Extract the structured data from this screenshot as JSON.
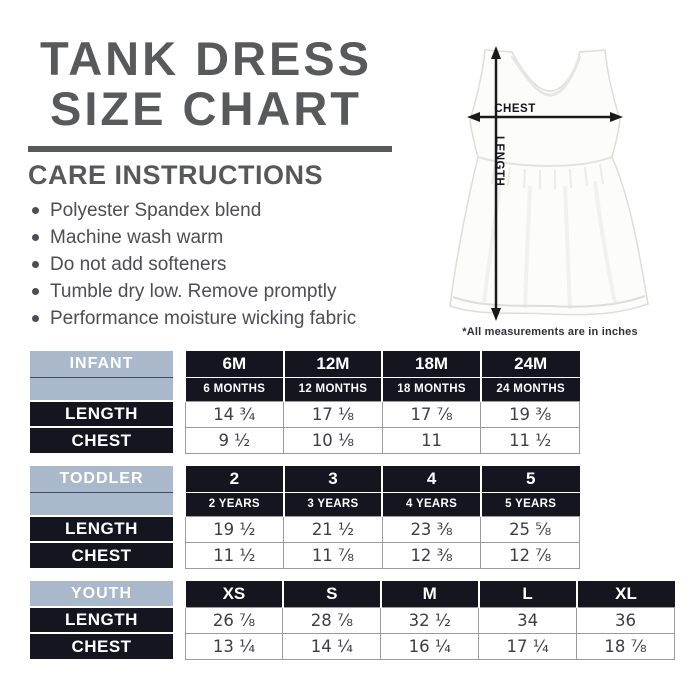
{
  "title": {
    "line1": "TANK DRESS",
    "line2": "SIZE CHART"
  },
  "care": {
    "heading": "CARE INSTRUCTIONS",
    "items": [
      "Polyester Spandex blend",
      "Machine wash warm",
      "Do not add softeners",
      "Tumble dry low. Remove promptly",
      "Performance moisture wicking fabric"
    ]
  },
  "diagram": {
    "chest_label": "CHEST",
    "length_label": "LENGTH",
    "note": "*All measurements are in inches"
  },
  "colors": {
    "navy": "#14151f",
    "light_blue": "#a9b8cb",
    "heading_gray": "#58595b",
    "body_text_gray": "#4d4d55",
    "value_text": "#3d3e43",
    "cell_border": "#9b9b9b",
    "arrow_black": "#1a1a1a"
  },
  "tables": [
    {
      "name": "INFANT",
      "columns": [
        {
          "code": "6M",
          "sub": "6 MONTHS"
        },
        {
          "code": "12M",
          "sub": "12 MONTHS"
        },
        {
          "code": "18M",
          "sub": "18 MONTHS"
        },
        {
          "code": "24M",
          "sub": "24 MONTHS"
        }
      ],
      "rows": [
        {
          "label": "LENGTH",
          "values": [
            "14 ¾",
            "17 ⅛",
            "17 ⅞",
            "19 ⅜"
          ]
        },
        {
          "label": "CHEST",
          "values": [
            "9 ½",
            "10 ⅛",
            "11",
            "11 ½"
          ]
        }
      ]
    },
    {
      "name": "TODDLER",
      "columns": [
        {
          "code": "2",
          "sub": "2 YEARS"
        },
        {
          "code": "3",
          "sub": "3 YEARS"
        },
        {
          "code": "4",
          "sub": "4 YEARS"
        },
        {
          "code": "5",
          "sub": "5 YEARS"
        }
      ],
      "rows": [
        {
          "label": "LENGTH",
          "values": [
            "19 ½",
            "21 ½",
            "23 ⅜",
            "25 ⅝"
          ]
        },
        {
          "label": "CHEST",
          "values": [
            "11 ½",
            "11 ⅞",
            "12 ⅜",
            "12 ⅞"
          ]
        }
      ]
    },
    {
      "name": "YOUTH",
      "columns": [
        {
          "code": "XS"
        },
        {
          "code": "S"
        },
        {
          "code": "M"
        },
        {
          "code": "L"
        },
        {
          "code": "XL"
        }
      ],
      "rows": [
        {
          "label": "LENGTH",
          "values": [
            "26 ⅞",
            "28 ⅞",
            "32 ½",
            "34",
            "36"
          ]
        },
        {
          "label": "CHEST",
          "values": [
            "13 ¼",
            "14 ¼",
            "16 ¼",
            "17 ¼",
            "18 ⅞"
          ]
        }
      ]
    }
  ]
}
